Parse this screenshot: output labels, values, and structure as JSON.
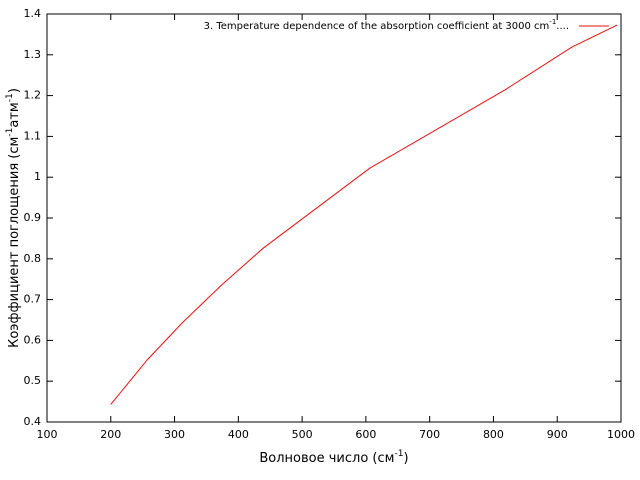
{
  "chart_data": {
    "type": "line",
    "xlabel": [
      "Волновое число (см",
      "-1",
      ")"
    ],
    "ylabel": [
      "Коэффициент поглощения (см",
      "-1",
      "атм",
      "-1",
      ")"
    ],
    "x": [
      200,
      257,
      312,
      374,
      439,
      606,
      818,
      923,
      994
    ],
    "series": [
      {
        "name": [
          "3. Temperature dependence of the absorption coefficient at 3000 cm",
          "-1",
          "...."
        ],
        "color": "#e8110f",
        "values": [
          0.443,
          0.552,
          0.643,
          0.736,
          0.826,
          1.022,
          1.214,
          1.319,
          1.373
        ]
      }
    ],
    "xlim": [
      100,
      1000
    ],
    "ylim": [
      0.4,
      1.4
    ],
    "xticks": [
      100,
      200,
      300,
      400,
      500,
      600,
      700,
      800,
      900,
      1000
    ],
    "yticks": [
      0.4,
      0.5,
      0.6,
      0.7,
      0.8,
      0.9,
      1,
      1.1,
      1.2,
      1.3,
      1.4
    ],
    "legend": "top-right"
  }
}
